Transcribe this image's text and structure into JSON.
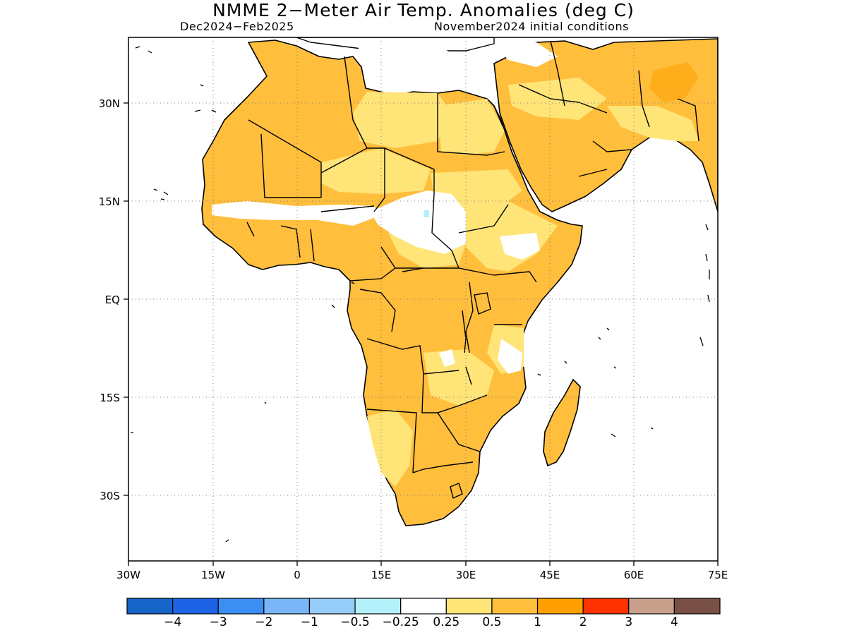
{
  "title": "NMME 2−Meter Air Temp. Anomalies (deg C)",
  "subtitle_left": "Dec2024−Feb2025",
  "subtitle_right": "November2024 initial conditions",
  "map": {
    "projection": "lat-lon",
    "lon_range": [
      -30,
      75
    ],
    "lat_range": [
      -40,
      40
    ],
    "grid": "dotted",
    "lon_ticks": [
      "30W",
      "15W",
      "0",
      "15E",
      "30E",
      "45E",
      "60E",
      "75E"
    ],
    "lat_ticks": [
      "30N",
      "15N",
      "EQ",
      "15S",
      "30S"
    ],
    "land_fill_dominant": "0.5 to 1 (orange)",
    "ocean_color": "#ffffff"
  },
  "colorbar": {
    "colors": [
      "#1565c8",
      "#1d63e6",
      "#3c8ef2",
      "#78b6f8",
      "#96cdf8",
      "#b4f0fa",
      "#ffffff",
      "#ffe478",
      "#ffbe3c",
      "#ffa000",
      "#ff3200",
      "#c8a08c",
      "#785046"
    ],
    "labels": [
      "−4",
      "−3",
      "−2",
      "−1",
      "−0.5",
      "−0.25",
      "0.25",
      "0.5",
      "1",
      "2",
      "3",
      "4"
    ]
  }
}
